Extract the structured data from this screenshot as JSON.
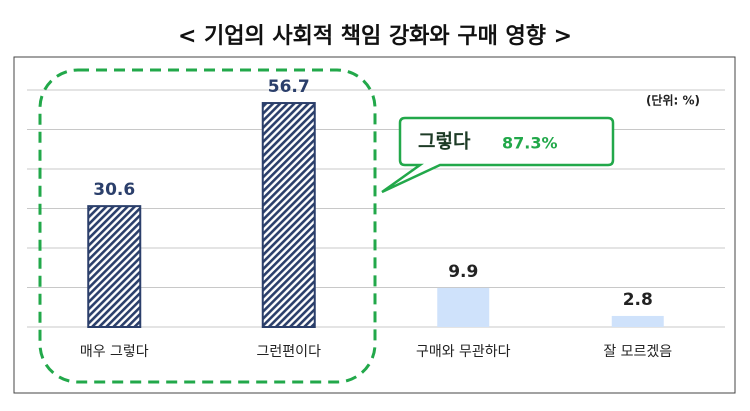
{
  "chart_data": {
    "type": "bar",
    "title": "< 기업의 사회적 책임 강화와 구매 영향 >",
    "unit": "(단위: %)",
    "categories": [
      "매우 그렇다",
      "그런편이다",
      "구매와 무관하다",
      "잘 모르겠음"
    ],
    "values": [
      30.6,
      56.7,
      9.9,
      2.8
    ],
    "colors": [
      "#2b3f6b",
      "#2b3f6b",
      "#cfe2fb",
      "#cfe2fb"
    ],
    "hatched": [
      true,
      true,
      false,
      false
    ],
    "callout": {
      "text": "그렇다",
      "value_text": "87.3%"
    },
    "ylim": [
      0,
      70
    ],
    "yticks": [
      0,
      10,
      20,
      30,
      40,
      50,
      60
    ],
    "grid": true
  }
}
